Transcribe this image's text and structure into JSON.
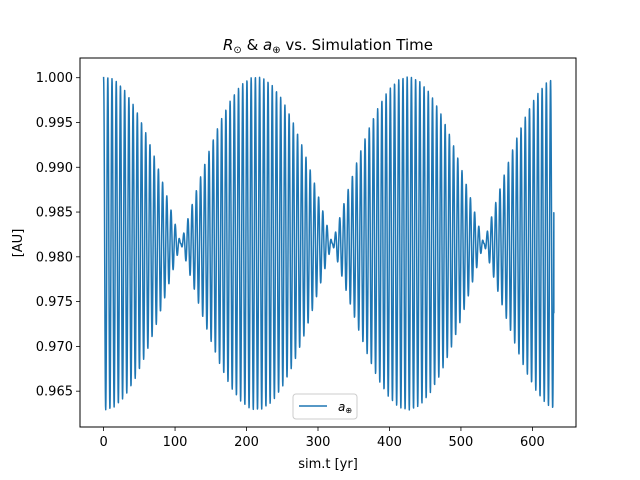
{
  "chart_data": {
    "type": "line",
    "title": "R⊙ & a⊕ vs. Simulation Time",
    "title_parts": {
      "r_symbol": "R",
      "r_sub": "⊙",
      "amp": " & ",
      "a_symbol": "a",
      "a_sub": "⊕",
      "rest": " vs. Simulation Time"
    },
    "xlabel": "sim.t [yr]",
    "ylabel": "[AU]",
    "xlim": [
      -33,
      661
    ],
    "ylim": [
      0.961,
      1.0022
    ],
    "x_ticks": [
      0,
      100,
      200,
      300,
      400,
      500,
      600
    ],
    "y_ticks": [
      0.965,
      0.97,
      0.975,
      0.98,
      0.985,
      0.99,
      0.995,
      1.0
    ],
    "y_tick_labels": [
      "0.965",
      "0.970",
      "0.975",
      "0.980",
      "0.985",
      "0.990",
      "0.995",
      "1.000"
    ],
    "legend": {
      "position": "lower center",
      "entries": [
        {
          "label": "a⊕",
          "symbol": "a",
          "sub": "⊕"
        }
      ]
    },
    "grid": false,
    "series": [
      {
        "name": "a⊕",
        "color": "#1f77b4",
        "model": "oscillation inside a beating envelope",
        "x_start": 0,
        "x_end": 630,
        "oscillation_period_yr": 5.9,
        "mean": 0.9815,
        "beat_nodes_yr": [
          108,
          320,
          532
        ],
        "peak_amplitude": 0.0186,
        "end_value": 0.9737
      }
    ]
  }
}
